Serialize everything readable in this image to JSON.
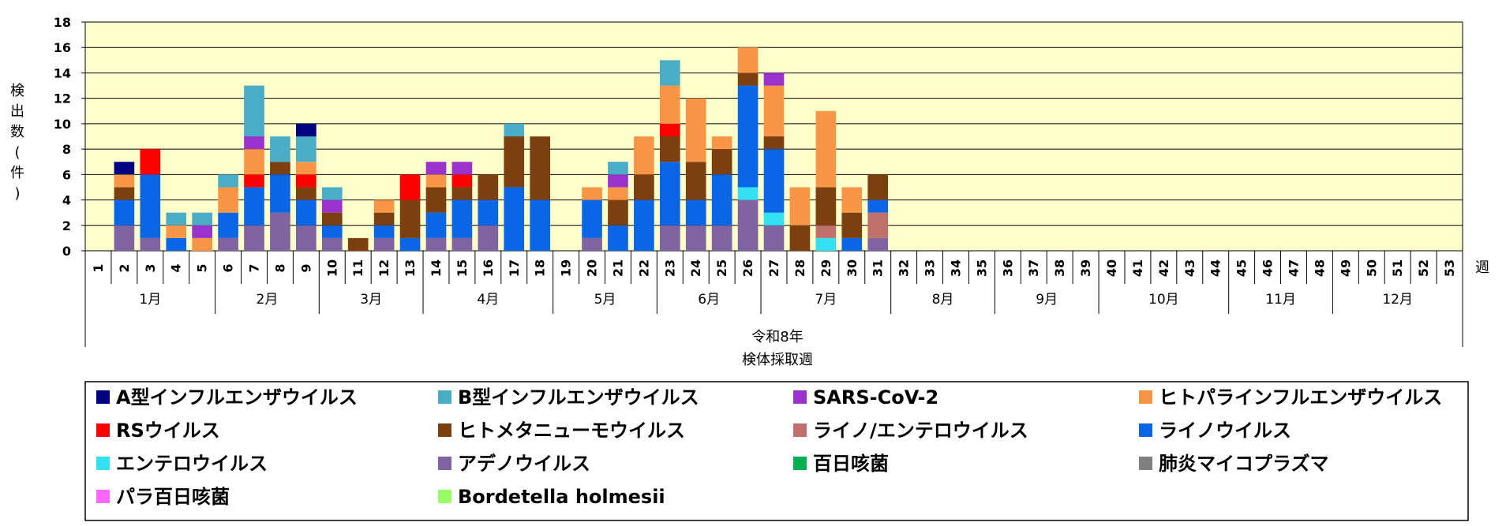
{
  "chart_data": {
    "type": "bar",
    "stacked": true,
    "ylabel": "検出数(件)",
    "xlabel_line1": "令和8年",
    "xlabel_line2": "検体採取週",
    "week_unit": "週",
    "ylim": [
      0,
      18
    ],
    "yticks": [
      0,
      2,
      4,
      6,
      8,
      10,
      12,
      14,
      16,
      18
    ],
    "grid": true,
    "legend_position": "bottom",
    "categories": [
      "1",
      "2",
      "3",
      "4",
      "5",
      "6",
      "7",
      "8",
      "9",
      "10",
      "11",
      "12",
      "13",
      "14",
      "15",
      "16",
      "17",
      "18",
      "19",
      "20",
      "21",
      "22",
      "23",
      "24",
      "25",
      "26",
      "27",
      "28",
      "29",
      "30",
      "31",
      "32",
      "33",
      "34",
      "35",
      "36",
      "37",
      "38",
      "39",
      "40",
      "41",
      "42",
      "43",
      "44",
      "45",
      "46",
      "47",
      "48",
      "49",
      "50",
      "51",
      "52",
      "53"
    ],
    "months": [
      {
        "label": "1月",
        "start": 1,
        "end": 5
      },
      {
        "label": "2月",
        "start": 6,
        "end": 9
      },
      {
        "label": "3月",
        "start": 10,
        "end": 13
      },
      {
        "label": "4月",
        "start": 14,
        "end": 18
      },
      {
        "label": "5月",
        "start": 19,
        "end": 22
      },
      {
        "label": "6月",
        "start": 23,
        "end": 26
      },
      {
        "label": "7月",
        "start": 27,
        "end": 31
      },
      {
        "label": "8月",
        "start": 32,
        "end": 35
      },
      {
        "label": "9月",
        "start": 36,
        "end": 39
      },
      {
        "label": "10月",
        "start": 40,
        "end": 44
      },
      {
        "label": "11月",
        "start": 45,
        "end": 48
      },
      {
        "label": "12月",
        "start": 49,
        "end": 53
      }
    ],
    "series": [
      {
        "name": "アデノウイルス",
        "color": "#8064A2",
        "values": [
          0,
          2,
          1,
          0,
          0,
          1,
          2,
          3,
          2,
          1,
          0,
          1,
          0,
          1,
          1,
          2,
          0,
          0,
          0,
          1,
          0,
          0,
          2,
          2,
          2,
          4,
          2,
          0,
          0,
          0,
          1,
          0,
          0,
          0,
          0,
          0,
          0,
          0,
          0,
          0,
          0,
          0,
          0,
          0,
          0,
          0,
          0,
          0,
          0,
          0,
          0,
          0,
          0
        ]
      },
      {
        "name": "エンテロウイルス",
        "color": "#33E0F0",
        "values": [
          0,
          0,
          0,
          0,
          0,
          0,
          0,
          0,
          0,
          0,
          0,
          0,
          0,
          0,
          0,
          0,
          0,
          0,
          0,
          0,
          0,
          0,
          0,
          0,
          0,
          1,
          1,
          0,
          1,
          0,
          0,
          0,
          0,
          0,
          0,
          0,
          0,
          0,
          0,
          0,
          0,
          0,
          0,
          0,
          0,
          0,
          0,
          0,
          0,
          0,
          0,
          0,
          0
        ]
      },
      {
        "name": "ライノ/エンテロウイルス",
        "color": "#C0706A",
        "values": [
          0,
          0,
          0,
          0,
          0,
          0,
          0,
          0,
          0,
          0,
          0,
          0,
          0,
          0,
          0,
          0,
          0,
          0,
          0,
          0,
          0,
          0,
          0,
          0,
          0,
          0,
          0,
          0,
          1,
          0,
          2,
          0,
          0,
          0,
          0,
          0,
          0,
          0,
          0,
          0,
          0,
          0,
          0,
          0,
          0,
          0,
          0,
          0,
          0,
          0,
          0,
          0,
          0
        ]
      },
      {
        "name": "ライノウイルス",
        "color": "#0B66E6",
        "values": [
          0,
          2,
          5,
          1,
          0,
          2,
          3,
          3,
          2,
          1,
          0,
          1,
          1,
          2,
          3,
          2,
          5,
          4,
          0,
          3,
          2,
          4,
          5,
          2,
          4,
          8,
          5,
          0,
          0,
          1,
          1,
          0,
          0,
          0,
          0,
          0,
          0,
          0,
          0,
          0,
          0,
          0,
          0,
          0,
          0,
          0,
          0,
          0,
          0,
          0,
          0,
          0,
          0
        ]
      },
      {
        "name": "ヒトメタニューモウイルス",
        "color": "#7B3F10",
        "values": [
          0,
          1,
          0,
          0,
          0,
          0,
          0,
          1,
          1,
          1,
          1,
          1,
          3,
          2,
          1,
          2,
          4,
          5,
          0,
          0,
          2,
          2,
          2,
          3,
          2,
          1,
          1,
          2,
          3,
          2,
          2,
          0,
          0,
          0,
          0,
          0,
          0,
          0,
          0,
          0,
          0,
          0,
          0,
          0,
          0,
          0,
          0,
          0,
          0,
          0,
          0,
          0,
          0
        ]
      },
      {
        "name": "RSウイルス",
        "color": "#FF0000",
        "values": [
          0,
          0,
          2,
          0,
          0,
          0,
          1,
          0,
          1,
          0,
          0,
          0,
          2,
          0,
          1,
          0,
          0,
          0,
          0,
          0,
          0,
          0,
          1,
          0,
          0,
          0,
          0,
          0,
          0,
          0,
          0,
          0,
          0,
          0,
          0,
          0,
          0,
          0,
          0,
          0,
          0,
          0,
          0,
          0,
          0,
          0,
          0,
          0,
          0,
          0,
          0,
          0,
          0
        ]
      },
      {
        "name": "ヒトパラインフルエンザウイルス",
        "color": "#F79646",
        "values": [
          0,
          1,
          0,
          1,
          1,
          2,
          2,
          0,
          1,
          0,
          0,
          1,
          0,
          1,
          0,
          0,
          0,
          0,
          0,
          1,
          1,
          3,
          3,
          5,
          1,
          2,
          4,
          3,
          6,
          2,
          0,
          0,
          0,
          0,
          0,
          0,
          0,
          0,
          0,
          0,
          0,
          0,
          0,
          0,
          0,
          0,
          0,
          0,
          0,
          0,
          0,
          0,
          0
        ]
      },
      {
        "name": "SARS-CoV-2",
        "color": "#9933CC",
        "values": [
          0,
          0,
          0,
          0,
          1,
          0,
          1,
          0,
          0,
          1,
          0,
          0,
          0,
          1,
          1,
          0,
          0,
          0,
          0,
          0,
          1,
          0,
          0,
          0,
          0,
          0,
          1,
          0,
          0,
          0,
          0,
          0,
          0,
          0,
          0,
          0,
          0,
          0,
          0,
          0,
          0,
          0,
          0,
          0,
          0,
          0,
          0,
          0,
          0,
          0,
          0,
          0,
          0
        ]
      },
      {
        "name": "B型インフルエンザウイルス",
        "color": "#4BACC6",
        "values": [
          0,
          0,
          0,
          1,
          1,
          1,
          4,
          2,
          2,
          1,
          0,
          0,
          0,
          0,
          0,
          0,
          1,
          0,
          0,
          0,
          1,
          0,
          2,
          0,
          0,
          0,
          0,
          0,
          0,
          0,
          0,
          0,
          0,
          0,
          0,
          0,
          0,
          0,
          0,
          0,
          0,
          0,
          0,
          0,
          0,
          0,
          0,
          0,
          0,
          0,
          0,
          0,
          0
        ]
      },
      {
        "name": "A型インフルエンザウイルス",
        "color": "#000080",
        "values": [
          0,
          1,
          0,
          0,
          0,
          0,
          0,
          0,
          1,
          0,
          0,
          0,
          0,
          0,
          0,
          0,
          0,
          0,
          0,
          0,
          0,
          0,
          0,
          0,
          0,
          0,
          0,
          0,
          0,
          0,
          0,
          0,
          0,
          0,
          0,
          0,
          0,
          0,
          0,
          0,
          0,
          0,
          0,
          0,
          0,
          0,
          0,
          0,
          0,
          0,
          0,
          0,
          0
        ]
      },
      {
        "name": "百日咳菌",
        "color": "#00B050",
        "values": [
          0,
          0,
          0,
          0,
          0,
          0,
          0,
          0,
          0,
          0,
          0,
          0,
          0,
          0,
          0,
          0,
          0,
          0,
          0,
          0,
          0,
          0,
          0,
          0,
          0,
          0,
          0,
          0,
          0,
          0,
          0,
          0,
          0,
          0,
          0,
          0,
          0,
          0,
          0,
          0,
          0,
          0,
          0,
          0,
          0,
          0,
          0,
          0,
          0,
          0,
          0,
          0,
          0
        ]
      },
      {
        "name": "肺炎マイコプラズマ",
        "color": "#808080",
        "values": [
          0,
          0,
          0,
          0,
          0,
          0,
          0,
          0,
          0,
          0,
          0,
          0,
          0,
          0,
          0,
          0,
          0,
          0,
          0,
          0,
          0,
          0,
          0,
          0,
          0,
          0,
          0,
          0,
          0,
          0,
          0,
          0,
          0,
          0,
          0,
          0,
          0,
          0,
          0,
          0,
          0,
          0,
          0,
          0,
          0,
          0,
          0,
          0,
          0,
          0,
          0,
          0,
          0
        ]
      },
      {
        "name": "パラ百日咳菌",
        "color": "#FF66FF",
        "values": [
          0,
          0,
          0,
          0,
          0,
          0,
          0,
          0,
          0,
          0,
          0,
          0,
          0,
          0,
          0,
          0,
          0,
          0,
          0,
          0,
          0,
          0,
          0,
          0,
          0,
          0,
          0,
          0,
          0,
          0,
          0,
          0,
          0,
          0,
          0,
          0,
          0,
          0,
          0,
          0,
          0,
          0,
          0,
          0,
          0,
          0,
          0,
          0,
          0,
          0,
          0,
          0,
          0
        ]
      },
      {
        "name": "Bordetella holmesii",
        "color": "#99FF66",
        "values": [
          0,
          0,
          0,
          0,
          0,
          0,
          0,
          0,
          0,
          0,
          0,
          0,
          0,
          0,
          0,
          0,
          0,
          0,
          0,
          0,
          0,
          0,
          0,
          0,
          0,
          0,
          0,
          0,
          0,
          0,
          0,
          0,
          0,
          0,
          0,
          0,
          0,
          0,
          0,
          0,
          0,
          0,
          0,
          0,
          0,
          0,
          0,
          0,
          0,
          0,
          0,
          0,
          0
        ]
      }
    ],
    "legend": [
      {
        "name": "A型インフルエンザウイルス",
        "color": "#000080"
      },
      {
        "name": "B型インフルエンザウイルス",
        "color": "#4BACC6"
      },
      {
        "name": "SARS-CoV-2",
        "color": "#9933CC"
      },
      {
        "name": "ヒトパラインフルエンザウイルス",
        "color": "#F79646"
      },
      {
        "name": "RSウイルス",
        "color": "#FF0000"
      },
      {
        "name": "ヒトメタニューモウイルス",
        "color": "#7B3F10"
      },
      {
        "name": "ライノ/エンテロウイルス",
        "color": "#C0706A"
      },
      {
        "name": "ライノウイルス",
        "color": "#0B66E6"
      },
      {
        "name": "エンテロウイルス",
        "color": "#33E0F0"
      },
      {
        "name": "アデノウイルス",
        "color": "#8064A2"
      },
      {
        "name": "百日咳菌",
        "color": "#00B050"
      },
      {
        "name": "肺炎マイコプラズマ",
        "color": "#808080"
      },
      {
        "name": "パラ百日咳菌",
        "color": "#FF66FF"
      },
      {
        "name": "Bordetella holmesii",
        "color": "#99FF66"
      }
    ],
    "plot_background": "#FFFFCC"
  }
}
